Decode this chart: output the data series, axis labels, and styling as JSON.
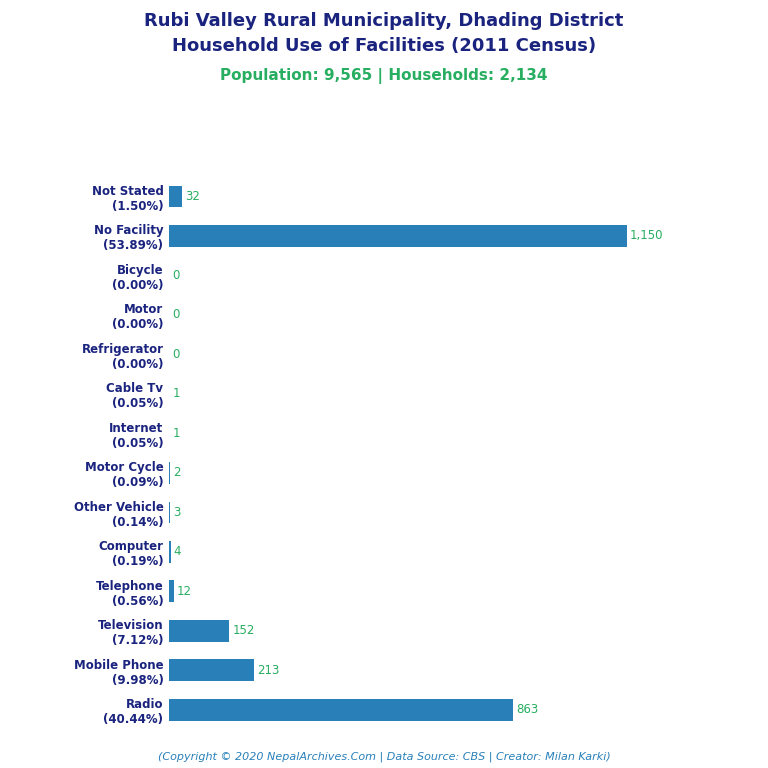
{
  "title_line1": "Rubi Valley Rural Municipality, Dhading District",
  "title_line2": "Household Use of Facilities (2011 Census)",
  "subtitle": "Population: 9,565 | Households: 2,134",
  "footer": "(Copyright © 2020 NepalArchives.Com | Data Source: CBS | Creator: Milan Karki)",
  "categories": [
    "Not Stated\n(1.50%)",
    "No Facility\n(53.89%)",
    "Bicycle\n(0.00%)",
    "Motor\n(0.00%)",
    "Refrigerator\n(0.00%)",
    "Cable Tv\n(0.05%)",
    "Internet\n(0.05%)",
    "Motor Cycle\n(0.09%)",
    "Other Vehicle\n(0.14%)",
    "Computer\n(0.19%)",
    "Telephone\n(0.56%)",
    "Television\n(7.12%)",
    "Mobile Phone\n(9.98%)",
    "Radio\n(40.44%)"
  ],
  "values": [
    32,
    1150,
    0,
    0,
    0,
    1,
    1,
    2,
    3,
    4,
    12,
    152,
    213,
    863
  ],
  "bar_color": "#2980b9",
  "value_color": "#27ae60",
  "title_color": "#1a237e",
  "subtitle_color": "#27ae60",
  "footer_color": "#2980b9",
  "bg_color": "#ffffff",
  "label_color": "#1a237e",
  "figsize": [
    7.68,
    7.68
  ],
  "dpi": 100
}
